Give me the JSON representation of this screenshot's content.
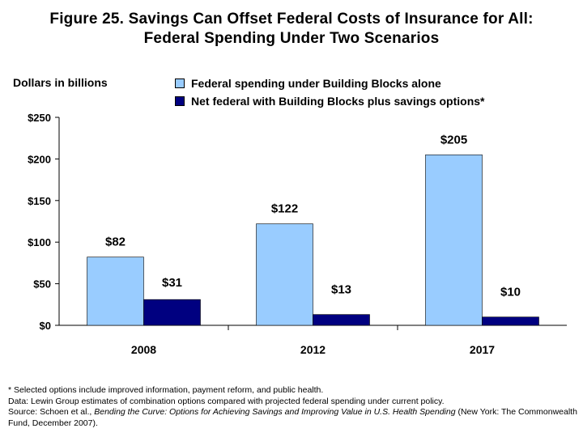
{
  "chart_data": {
    "type": "bar",
    "title_line1": "Figure 25. Savings Can Offset Federal Costs of Insurance for All:",
    "title_line2": "Federal Spending Under Two Scenarios",
    "ylabel": "Dollars in billions",
    "xlabel": "",
    "ylim": [
      0,
      250
    ],
    "yticks": [
      {
        "value": 0,
        "label": "$0"
      },
      {
        "value": 50,
        "label": "$50"
      },
      {
        "value": 100,
        "label": "$100"
      },
      {
        "value": 150,
        "label": "$150"
      },
      {
        "value": 200,
        "label": "$200"
      },
      {
        "value": 250,
        "label": "$250"
      }
    ],
    "categories": [
      "2008",
      "2012",
      "2017"
    ],
    "series": [
      {
        "name": "Federal spending under Building Blocks alone",
        "color": "#99ccff",
        "values": [
          82,
          122,
          205
        ],
        "labels": [
          "$82",
          "$122",
          "$205"
        ]
      },
      {
        "name": "Net federal with Building Blocks plus savings options*",
        "color": "#000080",
        "values": [
          31,
          13,
          10
        ],
        "labels": [
          "$31",
          "$13",
          "$10"
        ]
      }
    ],
    "grid": false,
    "legend": "top"
  },
  "footer": {
    "note": "* Selected options include improved information, payment reform, and public health.",
    "data": "Data: Lewin Group estimates of combination options compared with projected federal spending under current policy.",
    "source_prefix": "Source: Schoen et al., ",
    "source_title": "Bending the Curve: Options for Achieving Savings and Improving Value in U.S. Health Spending",
    "source_suffix": " (New York: The Commonwealth Fund, December 2007)."
  }
}
